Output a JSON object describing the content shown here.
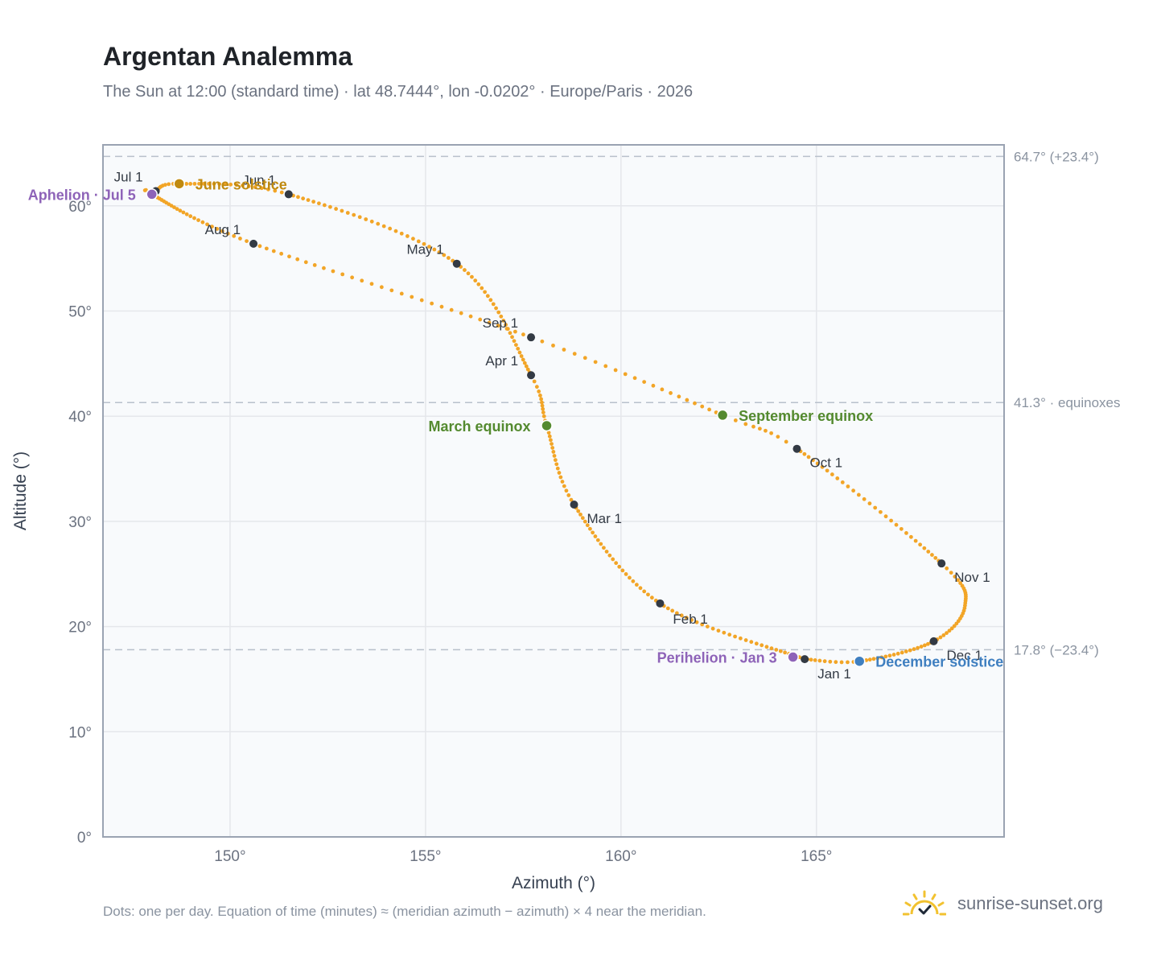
{
  "header": {
    "title": "Argentan Analemma",
    "subtitle": "The Sun at 12:00 (standard time) · lat 48.7444°, lon -0.0202° · Europe/Paris · 2026"
  },
  "footer": {
    "note": "Dots: one per day. Equation of time (minutes) ≈ (meridian azimuth − azimuth) × 4 near the meridian.",
    "brand": "sunrise-sunset.org"
  },
  "icons": {
    "brand": "sun-check-icon"
  },
  "colors": {
    "path": "#f2a527",
    "month_dot": "#333a44",
    "plot_bg": "#f8fafc",
    "frame": "#9aa3b2",
    "grid": "#e5e7eb",
    "ref_line": "#b8c0cb",
    "solstice_june": "#c08a10",
    "solstice_december": "#3f7fc0",
    "equinox": "#548a2f",
    "apsis": "#8e63b8"
  },
  "chart_data": {
    "type": "scatter",
    "title": "Argentan Analemma",
    "xlabel": "Azimuth (°)",
    "ylabel": "Altitude (°)",
    "xlim": [
      146.75,
      169.8
    ],
    "ylim": [
      0,
      65.8
    ],
    "x_ticks": [
      150,
      155,
      160,
      165
    ],
    "x_tick_labels": [
      "150°",
      "155°",
      "160°",
      "165°"
    ],
    "y_ticks": [
      0,
      10,
      20,
      30,
      40,
      50,
      60
    ],
    "y_tick_labels": [
      "0°",
      "10°",
      "20°",
      "30°",
      "40°",
      "50°",
      "60°"
    ],
    "grid": true,
    "reference_lines": [
      {
        "altitude": 64.7,
        "label": "64.7° (+23.4°)"
      },
      {
        "altitude": 41.3,
        "label": "41.3° · equinoxes"
      },
      {
        "altitude": 17.8,
        "label": "17.8° (−23.4°)"
      }
    ],
    "path_anchors": [
      {
        "doy": 1,
        "az": 164.7,
        "alt": 16.9
      },
      {
        "doy": 32,
        "az": 161.0,
        "alt": 22.2
      },
      {
        "doy": 60,
        "az": 158.8,
        "alt": 31.6
      },
      {
        "doy": 79,
        "az": 158.1,
        "alt": 39.1
      },
      {
        "doy": 91,
        "az": 157.7,
        "alt": 43.9
      },
      {
        "doy": 121,
        "az": 155.8,
        "alt": 54.5
      },
      {
        "doy": 152,
        "az": 151.5,
        "alt": 61.1
      },
      {
        "doy": 172,
        "az": 148.7,
        "alt": 62.1
      },
      {
        "doy": 182,
        "az": 148.1,
        "alt": 61.4
      },
      {
        "doy": 186,
        "az": 148.0,
        "alt": 61.1
      },
      {
        "doy": 213,
        "az": 150.6,
        "alt": 56.4
      },
      {
        "doy": 244,
        "az": 157.7,
        "alt": 47.5
      },
      {
        "doy": 265,
        "az": 162.6,
        "alt": 40.1
      },
      {
        "doy": 274,
        "az": 164.5,
        "alt": 36.9
      },
      {
        "doy": 305,
        "az": 168.2,
        "alt": 26.0
      },
      {
        "doy": 320,
        "az": 168.8,
        "alt": 22.0
      },
      {
        "doy": 335,
        "az": 168.0,
        "alt": 18.6
      },
      {
        "doy": 355,
        "az": 166.1,
        "alt": 16.7
      },
      {
        "doy": 366,
        "az": 164.7,
        "alt": 16.9
      }
    ],
    "months": [
      {
        "label": "Jan 1",
        "az": 164.7,
        "alt": 16.9,
        "anchor": "start",
        "dx": 16,
        "dy": 24
      },
      {
        "label": "Feb 1",
        "az": 161.0,
        "alt": 22.2,
        "anchor": "start",
        "dx": 16,
        "dy": 25
      },
      {
        "label": "Mar 1",
        "az": 158.8,
        "alt": 31.6,
        "anchor": "start",
        "dx": 16,
        "dy": 23
      },
      {
        "label": "Apr 1",
        "az": 157.7,
        "alt": 43.9,
        "anchor": "end",
        "dx": -16,
        "dy": -12
      },
      {
        "label": "May 1",
        "az": 155.8,
        "alt": 54.5,
        "anchor": "end",
        "dx": -16,
        "dy": -12
      },
      {
        "label": "Jun 1",
        "az": 151.5,
        "alt": 61.1,
        "anchor": "end",
        "dx": -16,
        "dy": -12
      },
      {
        "label": "Jul 1",
        "az": 148.1,
        "alt": 61.4,
        "anchor": "end",
        "dx": -16,
        "dy": -12
      },
      {
        "label": "Aug 1",
        "az": 150.6,
        "alt": 56.4,
        "anchor": "end",
        "dx": -16,
        "dy": -12
      },
      {
        "label": "Sep 1",
        "az": 157.7,
        "alt": 47.5,
        "anchor": "end",
        "dx": -16,
        "dy": -12
      },
      {
        "label": "Oct 1",
        "az": 164.5,
        "alt": 36.9,
        "anchor": "start",
        "dx": 16,
        "dy": 23
      },
      {
        "label": "Nov 1",
        "az": 168.2,
        "alt": 26.0,
        "anchor": "start",
        "dx": 16,
        "dy": 23
      },
      {
        "label": "Dec 1",
        "az": 168.0,
        "alt": 18.6,
        "anchor": "start",
        "dx": 16,
        "dy": 23
      }
    ],
    "events": [
      {
        "label": "June solstice",
        "az": 148.7,
        "alt": 62.1,
        "color": "#c08a10",
        "anchor": "start",
        "dx": 20,
        "dy": 7
      },
      {
        "label": "Aphelion · Jul 5",
        "az": 148.0,
        "alt": 61.1,
        "color": "#8e63b8",
        "anchor": "end",
        "dx": -20,
        "dy": 7
      },
      {
        "label": "March equinox",
        "az": 158.1,
        "alt": 39.1,
        "color": "#548a2f",
        "anchor": "end",
        "dx": -20,
        "dy": 7
      },
      {
        "label": "September equinox",
        "az": 162.6,
        "alt": 40.1,
        "color": "#548a2f",
        "anchor": "start",
        "dx": 20,
        "dy": 7
      },
      {
        "label": "Perihelion · Jan 3",
        "az": 164.4,
        "alt": 17.1,
        "color": "#8e63b8",
        "anchor": "end",
        "dx": -20,
        "dy": 7
      },
      {
        "label": "December solstice",
        "az": 166.1,
        "alt": 16.7,
        "color": "#3f7fc0",
        "anchor": "start",
        "dx": 20,
        "dy": 7
      }
    ]
  }
}
